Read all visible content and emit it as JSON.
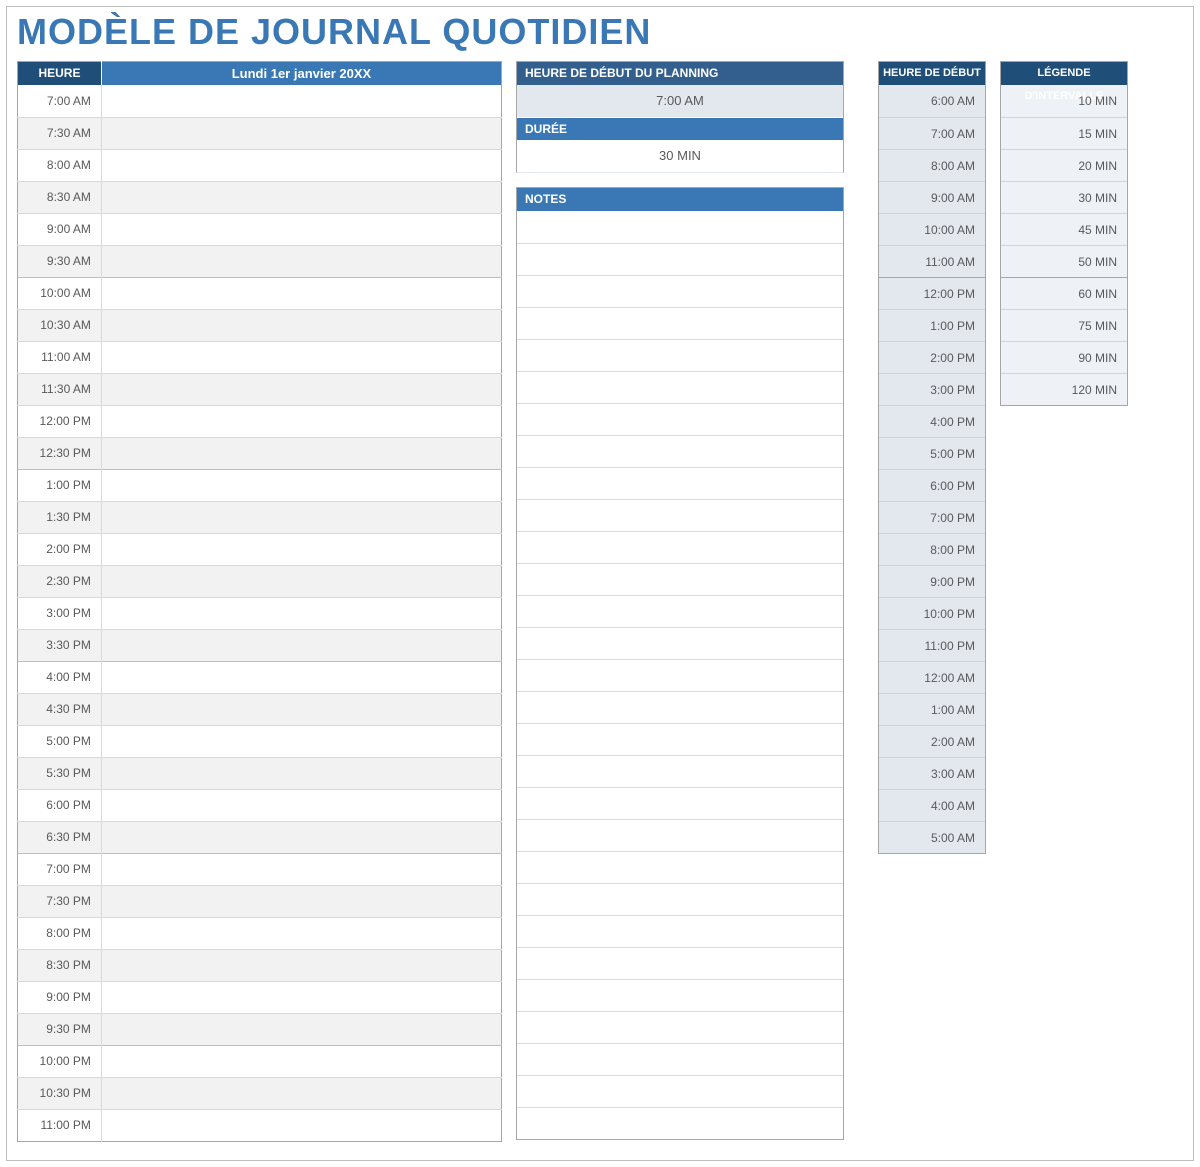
{
  "colors": {
    "title": "#3a78b5",
    "hdr_dark": "#1f4e79",
    "hdr_mid": "#325f8d",
    "hdr_light": "#3a78b5",
    "cfg_bg": "#e3e8ef",
    "legend_bg": "#eef1f5"
  },
  "page": {
    "title": "MODÈLE DE JOURNAL QUOTIDIEN"
  },
  "schedule": {
    "heure_header": "HEURE",
    "date_header": "Lundi 1er janvier 20XX",
    "times": [
      "7:00 AM",
      "7:30 AM",
      "8:00 AM",
      "8:30 AM",
      "9:00 AM",
      "9:30 AM",
      "10:00 AM",
      "10:30 AM",
      "11:00 AM",
      "11:30 AM",
      "12:00 PM",
      "12:30 PM",
      "1:00 PM",
      "1:30 PM",
      "2:00 PM",
      "2:30 PM",
      "3:00 PM",
      "3:30 PM",
      "4:00 PM",
      "4:30 PM",
      "5:00 PM",
      "5:30 PM",
      "6:00 PM",
      "6:30 PM",
      "7:00 PM",
      "7:30 PM",
      "8:00 PM",
      "8:30 PM",
      "9:00 PM",
      "9:30 PM",
      "10:00 PM",
      "10:30 PM",
      "11:00 PM"
    ]
  },
  "config": {
    "start_header": "HEURE DE DÉBUT DU PLANNING",
    "start_value": "7:00 AM",
    "duration_header": "DURÉE",
    "duration_value": "30 MIN"
  },
  "notes": {
    "header": "NOTES",
    "rows": 29
  },
  "start_times": {
    "header": "HEURE DE DÉBUT",
    "values": [
      "6:00 AM",
      "7:00 AM",
      "8:00 AM",
      "9:00 AM",
      "10:00 AM",
      "11:00 AM",
      "12:00 PM",
      "1:00 PM",
      "2:00 PM",
      "3:00 PM",
      "4:00 PM",
      "5:00 PM",
      "6:00 PM",
      "7:00 PM",
      "8:00 PM",
      "9:00 PM",
      "10:00 PM",
      "11:00 PM",
      "12:00 AM",
      "1:00 AM",
      "2:00 AM",
      "3:00 AM",
      "4:00 AM",
      "5:00 AM"
    ]
  },
  "legend": {
    "header": "LÉGENDE D'INTERVALLE",
    "values": [
      "10 MIN",
      "15 MIN",
      "20 MIN",
      "30 MIN",
      "45 MIN",
      "50 MIN",
      "60 MIN",
      "75 MIN",
      "90 MIN",
      "120 MIN"
    ]
  }
}
